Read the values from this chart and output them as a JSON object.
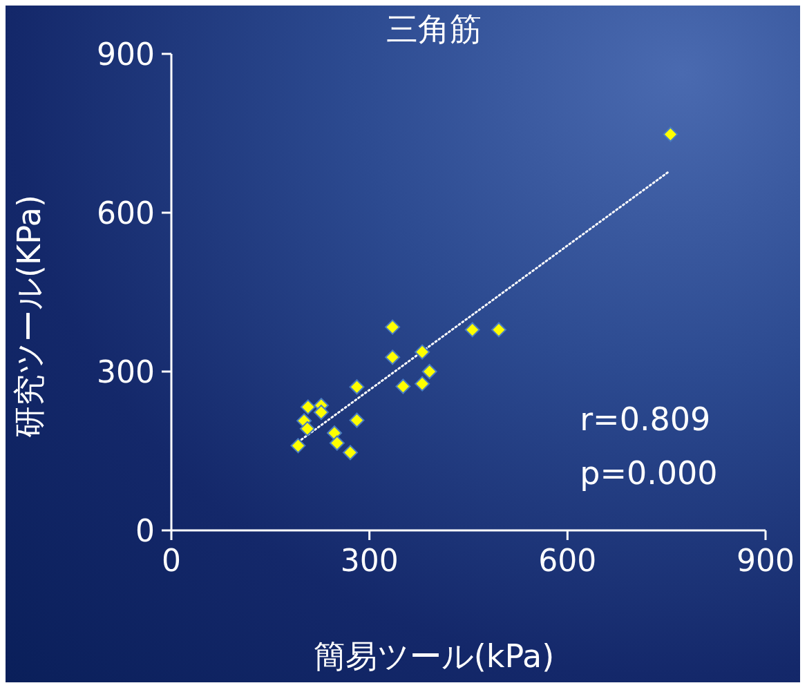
{
  "chart_data": {
    "type": "scatter",
    "title": "三角筋",
    "xlabel": "簡易ツール(kPa)",
    "ylabel": "研究ツール(KPa)",
    "grid": false,
    "legend": false,
    "series": [
      {
        "color": "#ffff00",
        "marker": "diamond",
        "x": [
          335,
          335,
          380,
          391,
          351,
          380,
          456,
          496,
          281,
          281,
          207,
          227,
          227,
          201,
          206,
          192,
          247,
          251,
          271,
          756
        ],
        "values": [
          384,
          327,
          337,
          300,
          272,
          277,
          379,
          379,
          271,
          208,
          233,
          236,
          223,
          207,
          192,
          160,
          184,
          165,
          147,
          748
        ]
      },
      {
        "type": "line",
        "color": "#ffffff",
        "line_style": "dotted",
        "marker": "none",
        "x": [
          192,
          754
        ],
        "values": [
          167,
          678
        ]
      }
    ],
    "xlim": [
      0,
      900
    ],
    "ylim": [
      0,
      900
    ],
    "xticks": [
      0,
      300,
      600,
      900
    ],
    "yticks": [
      0,
      300,
      600,
      900
    ],
    "annotations": [
      "r=0.809",
      "p=0.000"
    ]
  }
}
